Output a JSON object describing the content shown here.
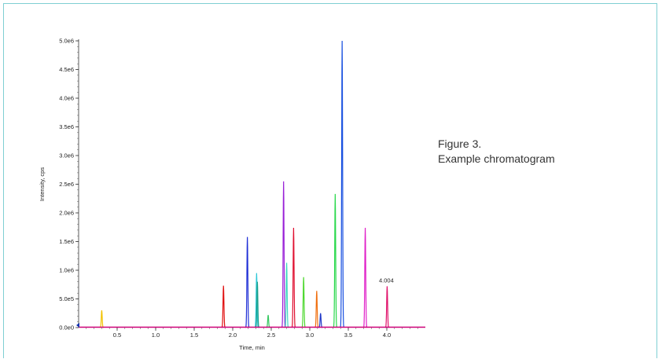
{
  "caption": {
    "figure": "Figure 3.",
    "title": "Example chromatogram"
  },
  "chart_data": {
    "type": "line",
    "xlabel": "Time, min",
    "ylabel": "Intensity, cps",
    "xlim": [
      0.0,
      4.5
    ],
    "ylim": [
      0,
      5000000
    ],
    "x_ticks": [
      {
        "value": 0.5,
        "label": "0.5"
      },
      {
        "value": 1.0,
        "label": "1.0"
      },
      {
        "value": 1.5,
        "label": "1.5"
      },
      {
        "value": 2.0,
        "label": "2.0"
      },
      {
        "value": 2.5,
        "label": "2.5"
      },
      {
        "value": 3.0,
        "label": "3.0"
      },
      {
        "value": 3.5,
        "label": "3.5"
      },
      {
        "value": 4.0,
        "label": "4.0"
      }
    ],
    "y_ticks": [
      {
        "value": 0,
        "label": "0.0e0"
      },
      {
        "value": 500000,
        "label": "5.0e5"
      },
      {
        "value": 1000000,
        "label": "1.0e6"
      },
      {
        "value": 1500000,
        "label": "1.5e6"
      },
      {
        "value": 2000000,
        "label": "2.0e6"
      },
      {
        "value": 2500000,
        "label": "2.5e6"
      },
      {
        "value": 3000000,
        "label": "3.0e6"
      },
      {
        "value": 3500000,
        "label": "3.5e6"
      },
      {
        "value": 4000000,
        "label": "4.0e6"
      },
      {
        "value": 4500000,
        "label": "4.5e6"
      },
      {
        "value": 5000000,
        "label": "5.0e6"
      }
    ],
    "baseline_color": "#cc0077",
    "grid": false,
    "peaks": [
      {
        "rt": 0.3,
        "height": 300000,
        "color": "#f2c200"
      },
      {
        "rt": 1.88,
        "height": 730000,
        "color": "#e01010"
      },
      {
        "rt": 2.19,
        "height": 1580000,
        "color": "#1f2fd6"
      },
      {
        "rt": 2.31,
        "height": 950000,
        "color": "#2ec8d8"
      },
      {
        "rt": 2.32,
        "height": 800000,
        "color": "#1aa08a"
      },
      {
        "rt": 2.46,
        "height": 220000,
        "color": "#35c860"
      },
      {
        "rt": 2.66,
        "height": 2550000,
        "color": "#9a22d8"
      },
      {
        "rt": 2.7,
        "height": 1130000,
        "color": "#3fd6c0"
      },
      {
        "rt": 2.79,
        "height": 1740000,
        "color": "#e01030"
      },
      {
        "rt": 2.92,
        "height": 880000,
        "color": "#4fd830"
      },
      {
        "rt": 3.09,
        "height": 640000,
        "color": "#f07010"
      },
      {
        "rt": 3.14,
        "height": 250000,
        "color": "#2038c8"
      },
      {
        "rt": 3.33,
        "height": 2330000,
        "color": "#28d84a"
      },
      {
        "rt": 3.42,
        "height": 5000000,
        "color": "#1850e0"
      },
      {
        "rt": 3.72,
        "height": 1740000,
        "color": "#e020c8"
      },
      {
        "rt": 4.004,
        "height": 720000,
        "color": "#e0106a"
      }
    ],
    "annotations": [
      {
        "x": 4.004,
        "text": "4.004"
      }
    ]
  }
}
